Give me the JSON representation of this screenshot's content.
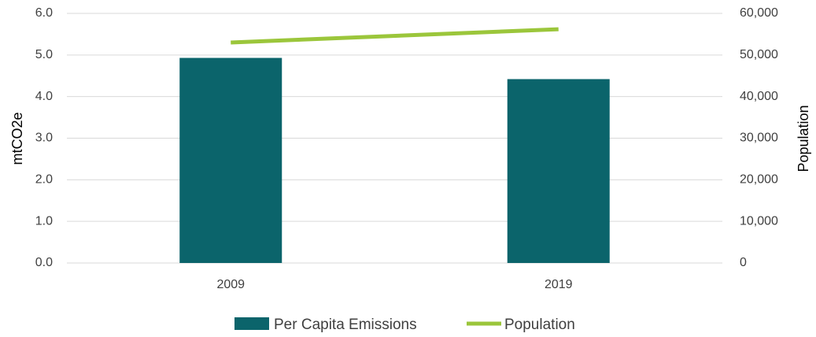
{
  "chart_data": {
    "type": "bar",
    "categories": [
      "2009",
      "2019"
    ],
    "series": [
      {
        "name": "Per Capita Emissions",
        "type": "bar",
        "axis": "left",
        "values": [
          4.93,
          4.42
        ],
        "color": "#0b646b"
      },
      {
        "name": "Population",
        "type": "line",
        "axis": "right",
        "values": [
          53000,
          56200
        ],
        "color": "#9bc63b"
      }
    ],
    "ylabel": "mtCO2e",
    "ylim": [
      0,
      6
    ],
    "y_ticks": [
      "0.0",
      "1.0",
      "2.0",
      "3.0",
      "4.0",
      "5.0",
      "6.0"
    ],
    "y2label": "Population",
    "y2lim": [
      0,
      60000
    ],
    "y2_ticks": [
      "0",
      "10,000",
      "20,000",
      "30,000",
      "40,000",
      "50,000",
      "60,000"
    ],
    "grid": true,
    "legend_position": "bottom"
  }
}
